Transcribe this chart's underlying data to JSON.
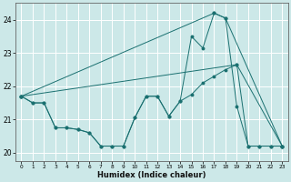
{
  "background_color": "#cce8e8",
  "grid_color": "#b0d8d8",
  "line_color": "#1a7070",
  "xlabel": "Humidex (Indice chaleur)",
  "xlim": [
    -0.5,
    23.5
  ],
  "ylim": [
    19.75,
    24.5
  ],
  "yticks": [
    20,
    21,
    22,
    23,
    24
  ],
  "xticks": [
    0,
    1,
    2,
    3,
    4,
    5,
    6,
    7,
    8,
    9,
    10,
    11,
    12,
    13,
    14,
    15,
    16,
    17,
    18,
    19,
    20,
    21,
    22,
    23
  ],
  "line1_x": [
    0,
    1,
    2,
    3,
    4,
    5,
    6,
    7,
    8,
    9,
    10,
    11,
    12,
    13,
    14,
    15,
    16,
    17,
    18,
    19,
    20,
    21,
    22,
    23
  ],
  "line1_y": [
    21.7,
    21.5,
    21.5,
    20.75,
    20.75,
    20.7,
    20.6,
    20.2,
    20.2,
    20.2,
    21.05,
    21.7,
    21.7,
    21.1,
    21.55,
    21.75,
    22.1,
    22.3,
    22.5,
    22.65,
    20.2,
    20.2,
    20.2,
    20.2
  ],
  "line2_x": [
    0,
    1,
    2,
    3,
    4,
    5,
    6,
    7,
    8,
    9,
    10,
    11,
    12,
    13,
    14,
    15,
    16,
    17,
    18,
    19,
    20,
    21,
    22,
    23
  ],
  "line2_y": [
    21.7,
    21.5,
    21.5,
    20.75,
    20.75,
    20.7,
    20.6,
    20.2,
    20.2,
    20.2,
    21.05,
    21.7,
    21.7,
    21.1,
    21.55,
    23.5,
    23.15,
    24.2,
    24.05,
    21.4,
    20.2,
    20.2,
    20.2,
    20.2
  ],
  "line3_x": [
    0,
    19,
    23
  ],
  "line3_y": [
    21.7,
    22.65,
    20.2
  ],
  "line4_x": [
    0,
    17,
    18,
    23
  ],
  "line4_y": [
    21.7,
    24.2,
    24.05,
    20.2
  ]
}
